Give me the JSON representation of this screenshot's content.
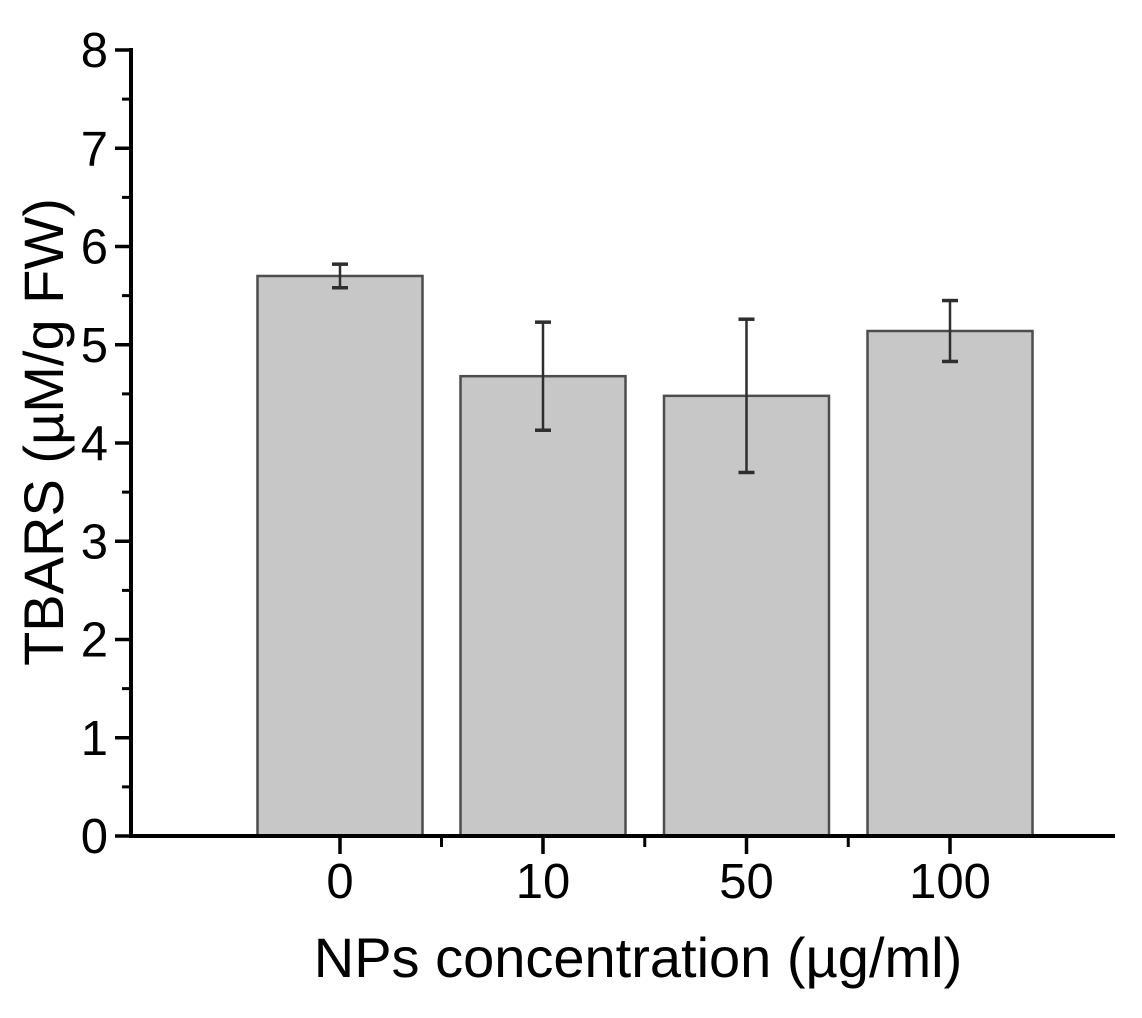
{
  "figure": {
    "background": "#ffffff"
  },
  "chart_data": {
    "type": "bar",
    "title": "",
    "xlabel": "NPs concentration (µg/ml)",
    "ylabel": "TBARS (µM/g FW)",
    "categories": [
      "0",
      "10",
      "50",
      "100"
    ],
    "values": [
      5.7,
      4.68,
      4.48,
      5.14
    ],
    "errors": [
      0.12,
      0.55,
      0.78,
      0.31
    ],
    "ylim": [
      0,
      8
    ],
    "y_major_ticks": [
      0,
      1,
      2,
      3,
      4,
      5,
      6,
      7,
      8
    ],
    "y_minor_step": 0.5,
    "x_minor_ticks_between_categories": true,
    "grid": false,
    "legend": null,
    "bar_fill": "#c7c7c7",
    "bar_stroke": "#4d4d4d",
    "error_color": "#2e2e2e",
    "axis_color": "#000000",
    "tick_label_color": "#000000"
  }
}
